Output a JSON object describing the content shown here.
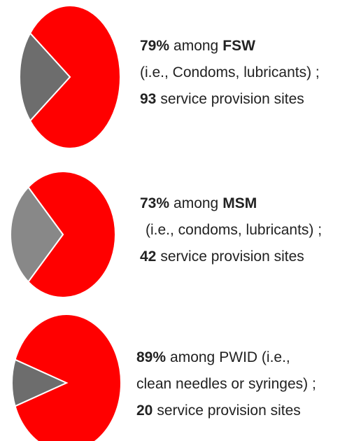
{
  "chart_data": [
    {
      "type": "pie",
      "values": [
        79,
        21
      ],
      "value_labels": [
        "79%",
        null
      ],
      "colors": [
        "#ff0000",
        "#6d6d6d"
      ],
      "connector": "among",
      "group": "FSW",
      "group_bold": true,
      "detail": "(i.e., Condoms, lubricants) ;",
      "sites": 93,
      "sites_text": "service provision sites"
    },
    {
      "type": "pie",
      "values": [
        73,
        27
      ],
      "value_labels": [
        "73%",
        null
      ],
      "colors": [
        "#ff0000",
        "#888888"
      ],
      "connector": "among",
      "group": "MSM",
      "group_bold": true,
      "detail": "(i.e., condoms, lubricants) ;",
      "sites": 42,
      "sites_text": "service provision sites"
    },
    {
      "type": "pie",
      "values": [
        89,
        11
      ],
      "value_labels": [
        "89%",
        null
      ],
      "colors": [
        "#ff0000",
        "#6d6d6d"
      ],
      "connector": "among",
      "group": "PWID (i.e.,",
      "group_bold": false,
      "detail": "clean needles or syringes) ;",
      "sites": 20,
      "sites_text": "service provision sites"
    }
  ]
}
